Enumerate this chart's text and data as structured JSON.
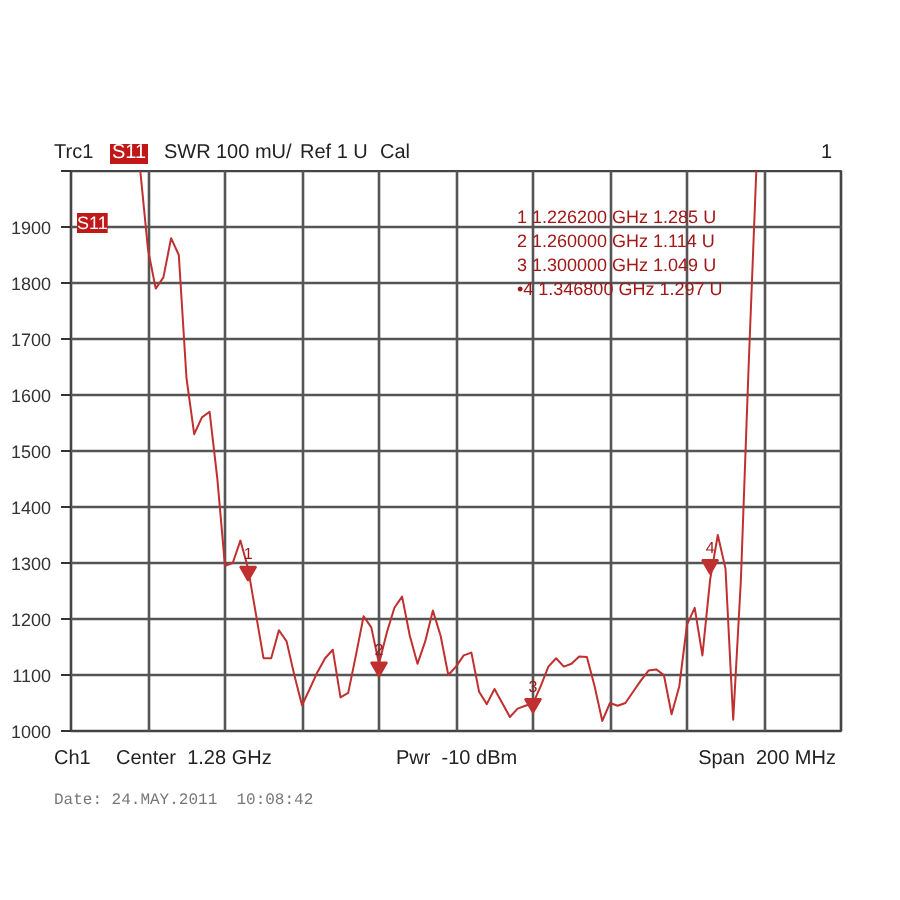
{
  "chart_data": {
    "type": "line",
    "title": "Trc1",
    "subtitle": "S11",
    "categories": [
      null,
      null,
      null,
      null,
      null,
      null,
      null,
      null,
      null,
      null,
      null,
      null,
      null,
      null,
      null,
      null,
      null,
      null,
      null,
      null,
      null,
      null,
      null,
      null,
      null,
      null,
      null,
      null,
      null,
      null,
      null,
      null,
      null,
      null,
      null,
      null,
      null,
      null,
      null,
      null,
      null,
      null,
      null,
      null,
      null,
      null,
      null,
      null,
      null,
      null,
      null,
      null,
      null,
      null,
      null,
      null,
      null,
      null,
      null,
      null,
      null,
      null,
      null,
      null,
      null,
      null,
      null,
      null,
      null,
      null,
      null,
      null,
      null,
      null,
      null,
      null,
      null,
      null,
      null,
      null,
      null,
      null,
      null,
      null,
      null,
      null,
      null,
      null,
      null,
      null,
      null,
      null,
      null,
      null,
      null,
      null,
      null,
      null,
      null,
      null,
      null
    ],
    "ylim": [
      1000,
      2000
    ],
    "yticks": [
      1000,
      1100,
      1200,
      1300,
      1400,
      1500,
      1600,
      1700,
      1800,
      1900,
      {
        "value": 2000,
        "label": null
      }
    ],
    "tick_labels": "y",
    "grid": true,
    "series": [
      {
        "color": "#c03030",
        "values": [
          null,
          null,
          null,
          null,
          null,
          null,
          null,
          null,
          null,
          2000,
          1860,
          1790,
          1810,
          1880,
          1850,
          1630,
          1530,
          1560,
          1570,
          1451,
          1295,
          1300,
          1340,
          1290,
          1210,
          1130,
          1130,
          1180,
          1160,
          1100,
          1046,
          1075,
          1105,
          1130,
          1145,
          1060,
          1068,
          1135,
          1205,
          1185,
          1120,
          1175,
          1220,
          1240,
          1170,
          1120,
          1160,
          1215,
          1170,
          1100,
          1115,
          1135,
          1140,
          1070,
          1048,
          1075,
          1050,
          1025,
          1040,
          1045,
          1049,
          1080,
          1115,
          1130,
          1115,
          1120,
          1133,
          1132,
          1080,
          1018,
          1050,
          1045,
          1050,
          1070,
          1090,
          1108,
          1110,
          1100,
          1030,
          1080,
          1190,
          1220,
          1135,
          1270,
          1350,
          1290,
          1020,
          1270,
          1650,
          2000,
          null,
          null,
          null,
          null,
          null,
          null,
          null,
          null,
          null,
          null,
          null
        ]
      },
      {
        "type": "scatter",
        "marker": "triangle",
        "color": "#c03030",
        "values": [
          null,
          null,
          null,
          null,
          null,
          null,
          null,
          null,
          null,
          null,
          null,
          null,
          null,
          null,
          null,
          null,
          null,
          null,
          null,
          null,
          null,
          null,
          null,
          1285,
          null,
          null,
          null,
          null,
          null,
          null,
          null,
          null,
          null,
          null,
          null,
          null,
          null,
          null,
          null,
          null,
          1114,
          null,
          null,
          null,
          null,
          null,
          null,
          null,
          null,
          null,
          null,
          null,
          null,
          null,
          null,
          null,
          null,
          null,
          null,
          null,
          1049,
          null,
          null,
          null,
          null,
          null,
          null,
          null,
          null,
          null,
          null,
          null,
          null,
          null,
          null,
          null,
          null,
          null,
          null,
          null,
          null,
          null,
          null,
          1297,
          null,
          null,
          null,
          null,
          null,
          null,
          null,
          null,
          null,
          null,
          null,
          null,
          null,
          null,
          null,
          null,
          null
        ]
      }
    ],
    "annotations": [
      "1",
      "2",
      "3",
      "4",
      "1  1.226200 GHz  1.285 U",
      "2  1.260000 GHz  1.114 U",
      "3  1.300000 GHz  1.049 U",
      "•4  1.346800 GHz  1.297 U",
      "S11",
      "SWR",
      "100 mU/",
      "Ref 1 U",
      "Cal",
      "1",
      "Ch1",
      "Center  1.28 GHz",
      "Pwr  -10 dBm",
      "Span  200 MHz",
      "Date: 24.MAY.2011  10:08:42"
    ]
  }
}
